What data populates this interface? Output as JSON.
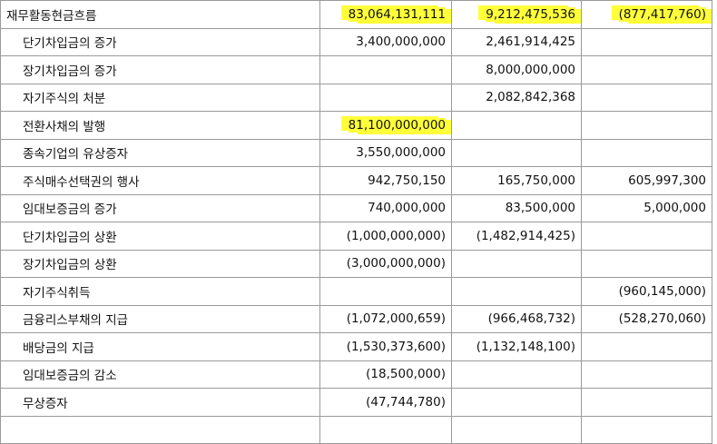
{
  "rows": [
    {
      "label": "재무활동현금흐름",
      "sub": false,
      "c1": "83,064,131,111",
      "c2": "9,212,475,536",
      "c3": "(877,417,760)",
      "hl": [
        "big",
        "big",
        "big"
      ]
    },
    {
      "label": "단기차입금의 증가",
      "sub": true,
      "c1": "3,400,000,000",
      "c2": "2,461,914,425",
      "c3": ""
    },
    {
      "label": "장기차입금의 증가",
      "sub": true,
      "c1": "",
      "c2": "8,000,000,000",
      "c3": ""
    },
    {
      "label": "자기주식의 처분",
      "sub": true,
      "c1": "",
      "c2": "2,082,842,368",
      "c3": ""
    },
    {
      "label": "전환사채의 발행",
      "sub": true,
      "c1": "81,100,000,000",
      "c2": "",
      "c3": "",
      "hl": [
        "big",
        "",
        ""
      ]
    },
    {
      "label": "종속기업의 유상증자",
      "sub": true,
      "c1": "3,550,000,000",
      "c2": "",
      "c3": ""
    },
    {
      "label": "주식매수선택권의 행사",
      "sub": true,
      "c1": "942,750,150",
      "c2": "165,750,000",
      "c3": "605,997,300"
    },
    {
      "label": "임대보증금의 증가",
      "sub": true,
      "c1": "740,000,000",
      "c2": "83,500,000",
      "c3": "5,000,000"
    },
    {
      "label": "단기차입금의 상환",
      "sub": true,
      "c1": "(1,000,000,000)",
      "c2": "(1,482,914,425)",
      "c3": ""
    },
    {
      "label": "장기차입금의 상환",
      "sub": true,
      "c1": "(3,000,000,000)",
      "c2": "",
      "c3": ""
    },
    {
      "label": "자기주식취득",
      "sub": true,
      "c1": "",
      "c2": "",
      "c3": "(960,145,000)"
    },
    {
      "label": "금융리스부채의 지급",
      "sub": true,
      "c1": "(1,072,000,659)",
      "c2": "(966,468,732)",
      "c3": "(528,270,060)"
    },
    {
      "label": "배당금의 지급",
      "sub": true,
      "c1": "(1,530,373,600)",
      "c2": "(1,132,148,100)",
      "c3": ""
    },
    {
      "label": "임대보증금의 감소",
      "sub": true,
      "c1": "(18,500,000)",
      "c2": "",
      "c3": ""
    },
    {
      "label": "무상증자",
      "sub": true,
      "c1": "(47,744,780)",
      "c2": "",
      "c3": ""
    },
    {
      "label": "",
      "sub": true,
      "c1": "",
      "c2": "",
      "c3": ""
    }
  ],
  "highlight_color": "#ffff3a"
}
